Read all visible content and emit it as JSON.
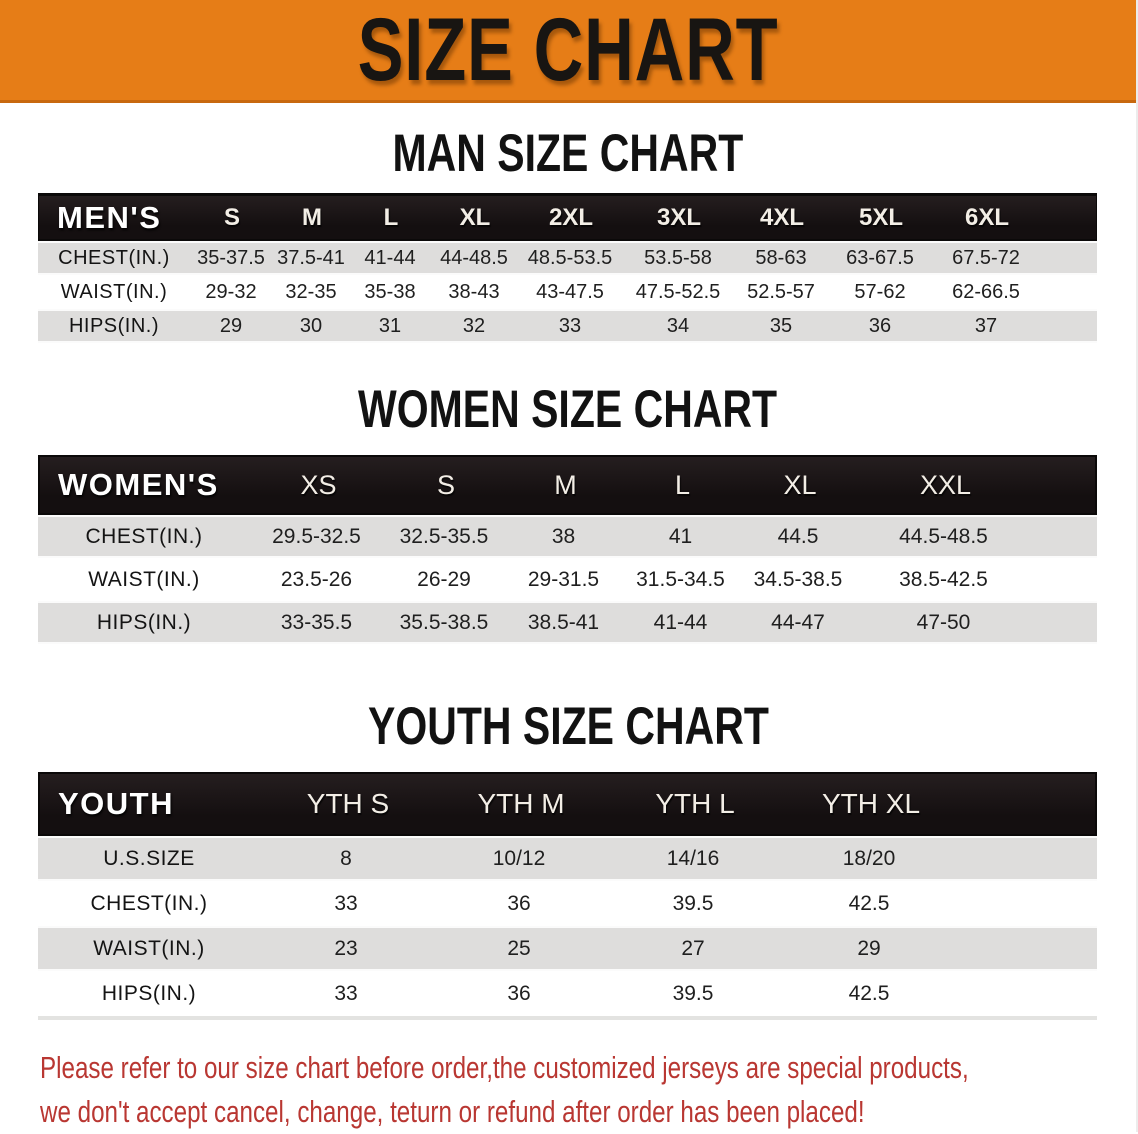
{
  "banner": {
    "title": "SIZE CHART",
    "bg_color": "#e67d17",
    "text_color": "#181512"
  },
  "sections": [
    {
      "title": "MAN SIZE CHART",
      "table": {
        "header_label": "MEN'S",
        "columns": [
          "S",
          "M",
          "L",
          "XL",
          "2XL",
          "3XL",
          "4XL",
          "5XL",
          "6XL"
        ],
        "rows": [
          {
            "label": "CHEST(IN.)",
            "values": [
              "35-37.5",
              "37.5-41",
              "41-44",
              "44-48.5",
              "48.5-53.5",
              "53.5-58",
              "58-63",
              "63-67.5",
              "67.5-72"
            ]
          },
          {
            "label": "WAIST(IN.)",
            "values": [
              "29-32",
              "32-35",
              "35-38",
              "38-43",
              "43-47.5",
              "47.5-52.5",
              "52.5-57",
              "57-62",
              "62-66.5"
            ]
          },
          {
            "label": "HIPS(IN.)",
            "values": [
              "29",
              "30",
              "31",
              "32",
              "33",
              "34",
              "35",
              "36",
              "37"
            ]
          }
        ]
      }
    },
    {
      "title": "WOMEN SIZE CHART",
      "table": {
        "header_label": "WOMEN'S",
        "columns": [
          "XS",
          "S",
          "M",
          "L",
          "XL",
          "XXL"
        ],
        "rows": [
          {
            "label": "CHEST(IN.)",
            "values": [
              "29.5-32.5",
              "32.5-35.5",
              "38",
              "41",
              "44.5",
              "44.5-48.5"
            ]
          },
          {
            "label": "WAIST(IN.)",
            "values": [
              "23.5-26",
              "26-29",
              "29-31.5",
              "31.5-34.5",
              "34.5-38.5",
              "38.5-42.5"
            ]
          },
          {
            "label": "HIPS(IN.)",
            "values": [
              "33-35.5",
              "35.5-38.5",
              "38.5-41",
              "41-44",
              "44-47",
              "47-50"
            ]
          }
        ]
      }
    },
    {
      "title": "YOUTH SIZE CHART",
      "table": {
        "header_label": "YOUTH",
        "columns": [
          "YTH S",
          "YTH M",
          "YTH L",
          "YTH XL"
        ],
        "rows": [
          {
            "label": "U.S.SIZE",
            "values": [
              "8",
              "10/12",
              "14/16",
              "18/20"
            ]
          },
          {
            "label": "CHEST(IN.)",
            "values": [
              "33",
              "36",
              "39.5",
              "42.5"
            ]
          },
          {
            "label": "WAIST(IN.)",
            "values": [
              "23",
              "25",
              "27",
              "29"
            ]
          },
          {
            "label": "HIPS(IN.)",
            "values": [
              "33",
              "36",
              "39.5",
              "42.5"
            ]
          }
        ]
      }
    }
  ],
  "disclaimer": {
    "text_color": "#b93732",
    "lines": [
      "Please refer to our size chart before order,the customized jerseys are special products,",
      "we don't accept cancel, change, teturn or refund after order has been placed!"
    ]
  }
}
